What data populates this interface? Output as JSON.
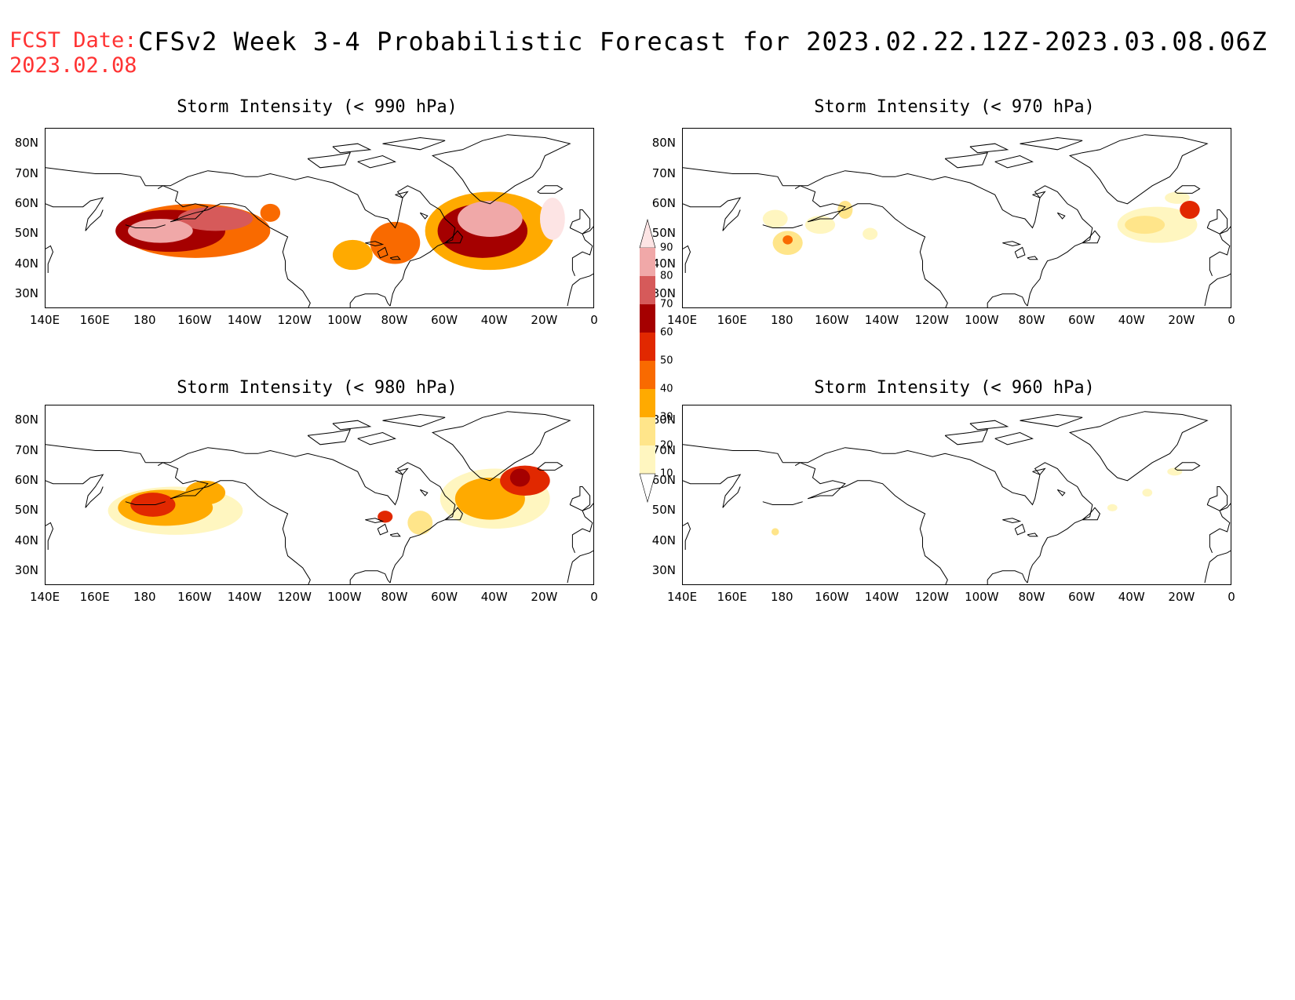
{
  "header": {
    "fcst_label": "FCST Date:",
    "fcst_date": "2023.02.08",
    "title": "CFSv2 Week 3-4 Probabilistic Forecast for 2023.02.22.12Z-2023.03.08.06Z",
    "label_color": "#ff3333"
  },
  "axes": {
    "x_ticks": [
      "140E",
      "160E",
      "180",
      "160W",
      "140W",
      "120W",
      "100W",
      "80W",
      "60W",
      "40W",
      "20W",
      "0"
    ],
    "y_ticks": [
      "80N",
      "70N",
      "60N",
      "50N",
      "40N",
      "30N"
    ],
    "x_range_deg_east": [
      140,
      360
    ],
    "y_range_deg_north": [
      25,
      85
    ]
  },
  "colorbar": {
    "labels": [
      "90",
      "80",
      "70",
      "60",
      "50",
      "40",
      "30",
      "20",
      "10"
    ],
    "levels": [
      10,
      20,
      30,
      40,
      50,
      60,
      70,
      80,
      90
    ],
    "colors": [
      "#fff6c0",
      "#ffe58a",
      "#ffaa00",
      "#f96a00",
      "#e12800",
      "#a50000",
      "#d65a5a",
      "#f0a8a8",
      "#fde4e4"
    ]
  },
  "panels": [
    {
      "id": "p990",
      "title": "Storm Intensity (< 990 hPa)",
      "blobs": [
        {
          "lon": 200,
          "lat": 51,
          "rx": 30,
          "ry": 9,
          "v": 45
        },
        {
          "lon": 190,
          "lat": 51,
          "rx": 22,
          "ry": 7,
          "v": 68
        },
        {
          "lon": 186,
          "lat": 51,
          "rx": 13,
          "ry": 4,
          "v": 88
        },
        {
          "lon": 208,
          "lat": 55,
          "rx": 15,
          "ry": 4,
          "v": 75
        },
        {
          "lon": 230,
          "lat": 57,
          "rx": 4,
          "ry": 3,
          "v": 42
        },
        {
          "lon": 263,
          "lat": 43,
          "rx": 8,
          "ry": 5,
          "v": 38
        },
        {
          "lon": 280,
          "lat": 47,
          "rx": 10,
          "ry": 7,
          "v": 42
        },
        {
          "lon": 318,
          "lat": 51,
          "rx": 26,
          "ry": 13,
          "v": 38
        },
        {
          "lon": 315,
          "lat": 51,
          "rx": 18,
          "ry": 9,
          "v": 65
        },
        {
          "lon": 318,
          "lat": 55,
          "rx": 13,
          "ry": 6,
          "v": 86
        },
        {
          "lon": 343,
          "lat": 55,
          "rx": 5,
          "ry": 7,
          "v": 94
        }
      ]
    },
    {
      "id": "p970",
      "title": "Storm Intensity (< 970 hPa)",
      "blobs": [
        {
          "lon": 177,
          "lat": 55,
          "rx": 5,
          "ry": 3,
          "v": 18
        },
        {
          "lon": 182,
          "lat": 47,
          "rx": 6,
          "ry": 4,
          "v": 22
        },
        {
          "lon": 182,
          "lat": 48,
          "rx": 2,
          "ry": 1.5,
          "v": 45
        },
        {
          "lon": 195,
          "lat": 53,
          "rx": 6,
          "ry": 3,
          "v": 18
        },
        {
          "lon": 205,
          "lat": 58,
          "rx": 3,
          "ry": 3,
          "v": 25
        },
        {
          "lon": 215,
          "lat": 50,
          "rx": 3,
          "ry": 2,
          "v": 16
        },
        {
          "lon": 330,
          "lat": 53,
          "rx": 16,
          "ry": 6,
          "v": 18
        },
        {
          "lon": 325,
          "lat": 53,
          "rx": 8,
          "ry": 3,
          "v": 25
        },
        {
          "lon": 343,
          "lat": 58,
          "rx": 4,
          "ry": 3,
          "v": 55
        },
        {
          "lon": 338,
          "lat": 62,
          "rx": 5,
          "ry": 2,
          "v": 14
        }
      ]
    },
    {
      "id": "p980",
      "title": "Storm Intensity (< 980 hPa)",
      "blobs": [
        {
          "lon": 192,
          "lat": 50,
          "rx": 27,
          "ry": 8,
          "v": 18
        },
        {
          "lon": 188,
          "lat": 51,
          "rx": 19,
          "ry": 6,
          "v": 35
        },
        {
          "lon": 183,
          "lat": 52,
          "rx": 9,
          "ry": 4,
          "v": 55
        },
        {
          "lon": 204,
          "lat": 56,
          "rx": 8,
          "ry": 4,
          "v": 35
        },
        {
          "lon": 276,
          "lat": 48,
          "rx": 3,
          "ry": 2,
          "v": 55
        },
        {
          "lon": 290,
          "lat": 46,
          "rx": 5,
          "ry": 4,
          "v": 25
        },
        {
          "lon": 320,
          "lat": 54,
          "rx": 22,
          "ry": 10,
          "v": 18
        },
        {
          "lon": 318,
          "lat": 54,
          "rx": 14,
          "ry": 7,
          "v": 35
        },
        {
          "lon": 332,
          "lat": 60,
          "rx": 10,
          "ry": 5,
          "v": 55
        },
        {
          "lon": 330,
          "lat": 61,
          "rx": 4,
          "ry": 3,
          "v": 68
        }
      ]
    },
    {
      "id": "p960",
      "title": "Storm Intensity (< 960 hPa)",
      "blobs": [
        {
          "lon": 177,
          "lat": 43,
          "rx": 1.5,
          "ry": 1.2,
          "v": 25
        },
        {
          "lon": 312,
          "lat": 51,
          "rx": 2,
          "ry": 1.2,
          "v": 15
        },
        {
          "lon": 326,
          "lat": 56,
          "rx": 2,
          "ry": 1.3,
          "v": 15
        },
        {
          "lon": 337,
          "lat": 63,
          "rx": 3,
          "ry": 1.3,
          "v": 15
        }
      ]
    }
  ]
}
